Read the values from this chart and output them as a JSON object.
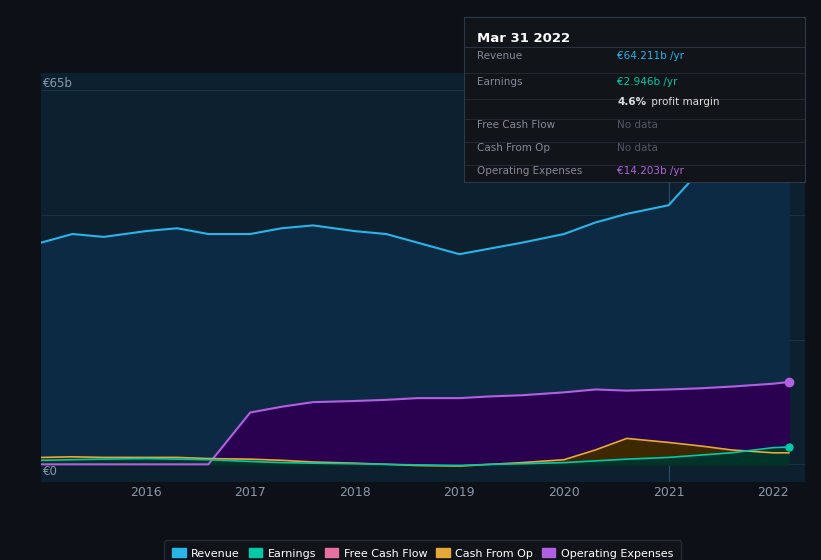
{
  "background_color": "#0d1117",
  "plot_bg_color": "#0d2030",
  "ylabel_top": "€65b",
  "ylabel_bottom": "€0",
  "revenue": {
    "label": "Revenue",
    "color": "#29b5e8",
    "fill_color": "#0d2a45",
    "values_x": [
      2015.0,
      2015.3,
      2015.6,
      2016.0,
      2016.3,
      2016.6,
      2017.0,
      2017.3,
      2017.6,
      2018.0,
      2018.3,
      2018.6,
      2019.0,
      2019.3,
      2019.6,
      2020.0,
      2020.3,
      2020.6,
      2021.0,
      2021.3,
      2021.6,
      2022.0,
      2022.15
    ],
    "values_y": [
      38.5,
      40.0,
      39.5,
      40.5,
      41.0,
      40.0,
      40.0,
      41.0,
      41.5,
      40.5,
      40.0,
      38.5,
      36.5,
      37.5,
      38.5,
      40.0,
      42.0,
      43.5,
      45.0,
      51.0,
      57.0,
      64.0,
      65.0
    ]
  },
  "earnings": {
    "label": "Earnings",
    "color": "#00c9a7",
    "fill_color": "#00332a",
    "values_x": [
      2015.0,
      2015.3,
      2015.6,
      2016.0,
      2016.3,
      2016.6,
      2017.0,
      2017.3,
      2017.6,
      2018.0,
      2018.3,
      2018.6,
      2019.0,
      2019.3,
      2019.6,
      2020.0,
      2020.3,
      2020.6,
      2021.0,
      2021.3,
      2021.6,
      2022.0,
      2022.15
    ],
    "values_y": [
      0.7,
      0.8,
      0.9,
      1.0,
      0.9,
      0.8,
      0.5,
      0.3,
      0.2,
      0.1,
      0.0,
      -0.1,
      -0.2,
      0.0,
      0.1,
      0.3,
      0.6,
      0.9,
      1.2,
      1.6,
      2.0,
      2.9,
      3.0
    ]
  },
  "cash_from_op": {
    "label": "Cash From Op",
    "color": "#e8a838",
    "fill_color": "#3d2800",
    "values_x": [
      2015.0,
      2015.3,
      2015.6,
      2016.0,
      2016.3,
      2016.6,
      2017.0,
      2017.3,
      2017.6,
      2018.0,
      2018.3,
      2018.6,
      2019.0,
      2019.3,
      2019.6,
      2020.0,
      2020.3,
      2020.6,
      2021.0,
      2021.3,
      2021.6,
      2022.0,
      2022.15
    ],
    "values_y": [
      1.2,
      1.3,
      1.2,
      1.2,
      1.2,
      1.0,
      0.9,
      0.7,
      0.4,
      0.2,
      0.0,
      -0.2,
      -0.3,
      0.0,
      0.3,
      0.8,
      2.5,
      4.5,
      3.8,
      3.2,
      2.5,
      2.0,
      2.0
    ]
  },
  "operating_expenses": {
    "label": "Operating Expenses",
    "color": "#b060e0",
    "fill_color": "#2a0050",
    "values_x": [
      2015.0,
      2015.3,
      2015.6,
      2016.0,
      2016.3,
      2016.6,
      2017.0,
      2017.3,
      2017.6,
      2018.0,
      2018.3,
      2018.6,
      2019.0,
      2019.3,
      2019.6,
      2020.0,
      2020.3,
      2020.6,
      2021.0,
      2021.3,
      2021.6,
      2022.0,
      2022.15
    ],
    "values_y": [
      0.0,
      0.0,
      0.0,
      0.0,
      0.0,
      0.0,
      9.0,
      10.0,
      10.8,
      11.0,
      11.2,
      11.5,
      11.5,
      11.8,
      12.0,
      12.5,
      13.0,
      12.8,
      13.0,
      13.2,
      13.5,
      14.0,
      14.3
    ]
  },
  "free_cash_flow": {
    "label": "Free Cash Flow",
    "color": "#e870a0",
    "values_x": [],
    "values_y": []
  },
  "ylim": [
    -3,
    68
  ],
  "xlim": [
    2015.0,
    2022.3
  ],
  "x_tick_labels": [
    "2016",
    "2017",
    "2018",
    "2019",
    "2020",
    "2021",
    "2022"
  ],
  "x_tick_positions": [
    2016,
    2017,
    2018,
    2019,
    2020,
    2021,
    2022
  ],
  "vertical_line_x": 2021.0,
  "grid_color": "#1a3a50",
  "legend_items": [
    {
      "label": "Revenue",
      "color": "#29b5e8"
    },
    {
      "label": "Earnings",
      "color": "#00c9a7"
    },
    {
      "label": "Free Cash Flow",
      "color": "#e870a0"
    },
    {
      "label": "Cash From Op",
      "color": "#e8a838"
    },
    {
      "label": "Operating Expenses",
      "color": "#b060e0"
    }
  ],
  "tooltip": {
    "title": "Mar 31 2022",
    "bg_color": "#111418",
    "border_color": "#2a3a4a",
    "title_color": "#ffffff",
    "label_color": "#888899",
    "separator_color": "#2a3040",
    "rows": [
      {
        "label": "Revenue",
        "value": "€64.211b /yr",
        "value_color": "#29b5e8"
      },
      {
        "label": "Earnings",
        "value": "€2.946b /yr",
        "value_color": "#00c9a7"
      },
      {
        "label": "",
        "value": "4.6% profit margin",
        "value_color": "#ffffff",
        "bold_prefix": "4.6%"
      },
      {
        "label": "Free Cash Flow",
        "value": "No data",
        "value_color": "#55566a"
      },
      {
        "label": "Cash From Op",
        "value": "No data",
        "value_color": "#55566a"
      },
      {
        "label": "Operating Expenses",
        "value": "€14.203b /yr",
        "value_color": "#b060e0"
      }
    ]
  }
}
